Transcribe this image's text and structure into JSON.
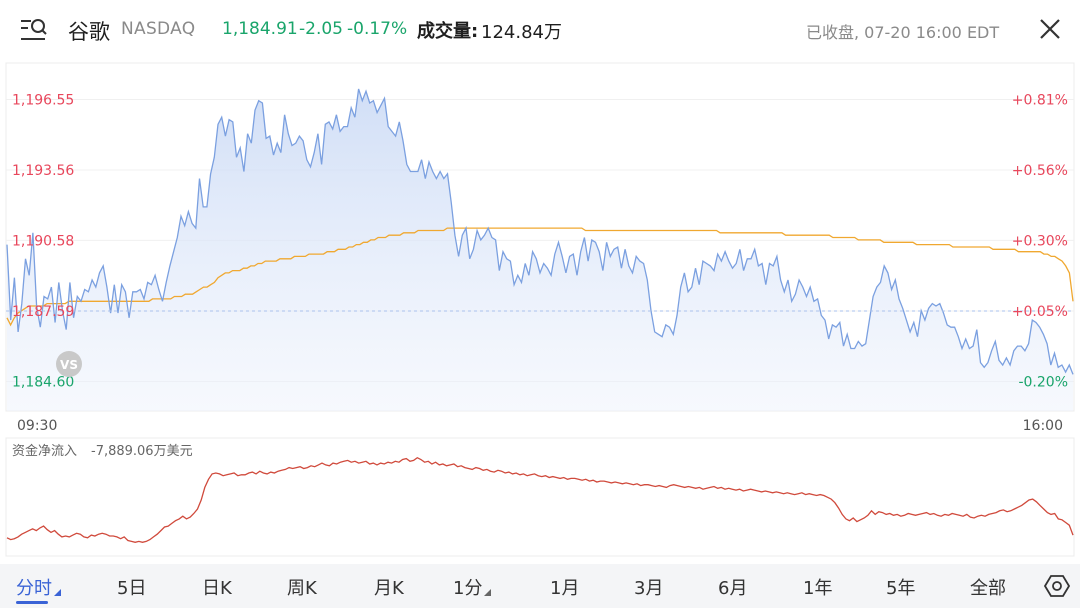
{
  "header": {
    "stock_name": "谷歌",
    "exchange": "NASDAQ",
    "price": "1,184.91",
    "change": "-2.05",
    "change_pct": "-0.17%",
    "volume_label": "成交量:",
    "volume_value": "124.84万",
    "status": "已收盘, 07-20 16:00 EDT",
    "menu_icon": "menu-search-icon",
    "close_icon": "close-icon"
  },
  "colors": {
    "up": "#e8475c",
    "down": "#1aa56b",
    "price_line": "#7ba0e0",
    "avg_line": "#f0a830",
    "flow_line": "#d04a3c",
    "accent": "#3a63d6"
  },
  "chart_data": [
    {
      "type": "area",
      "y_ticks_left": [
        "1,196.55",
        "1,193.56",
        "1,190.58",
        "1,187.59",
        "1,184.60"
      ],
      "y_ticks_right": [
        "+0.81%",
        "+0.56%",
        "+0.30%",
        "+0.05%",
        "-0.20%"
      ],
      "x_ticks": [
        "09:30",
        "16:00"
      ],
      "ylim": [
        1184.6,
        1197.8
      ],
      "reference_line": 1187.59,
      "overlay_label": "VS",
      "series": [
        {
          "values": [
            1190.4,
            1187.2,
            1189.0,
            1186.7,
            1187.9,
            1189.8,
            1189.1,
            1190.9,
            1187.8,
            1186.9,
            1188.2,
            1188.1,
            1188.6,
            1187.1,
            1188.8,
            1187.6,
            1186.8,
            1188.8,
            1187.3,
            1188.2,
            1188.0,
            1188.5,
            1188.4,
            1188.9,
            1188.6,
            1189.2,
            1189.5,
            1188.6,
            1187.5,
            1188.7,
            1187.5,
            1188.7,
            1188.4,
            1187.3,
            1188.4,
            1188.4,
            1188.5,
            1188.1,
            1188.8,
            1188.7,
            1189.1,
            1188.5,
            1188.0,
            1188.8,
            1189.5,
            1190.1,
            1190.7,
            1191.6,
            1191.2,
            1191.8,
            1191.3,
            1191.1,
            1193.2,
            1192.0,
            1192.0,
            1193.4,
            1194.1,
            1195.5,
            1195.8,
            1195.0,
            1195.7,
            1195.6,
            1194.1,
            1194.5,
            1193.5,
            1195.1,
            1194.7,
            1196.1,
            1196.5,
            1196.4,
            1194.9,
            1195.0,
            1194.2,
            1194.7,
            1194.3,
            1195.9,
            1195.1,
            1194.6,
            1194.7,
            1195.0,
            1194.8,
            1194.0,
            1193.7,
            1194.3,
            1195.1,
            1193.8,
            1195.5,
            1195.6,
            1195.3,
            1195.9,
            1195.2,
            1195.4,
            1195.4,
            1196.2,
            1195.8,
            1197.0,
            1196.5,
            1196.9,
            1196.4,
            1196.5,
            1196.0,
            1196.3,
            1196.6,
            1195.4,
            1195.2,
            1195.0,
            1195.6,
            1194.8,
            1193.8,
            1193.5,
            1193.5,
            1193.5,
            1194.0,
            1193.2,
            1193.9,
            1193.5,
            1193.2,
            1193.5,
            1193.2,
            1193.4,
            1192.2,
            1190.8,
            1189.9,
            1190.8,
            1191.1,
            1189.8,
            1190.2,
            1191.0,
            1190.6,
            1190.8,
            1191.1,
            1190.7,
            1190.6,
            1189.3,
            1190.1,
            1189.8,
            1189.7,
            1188.7,
            1189.1,
            1188.8,
            1189.6,
            1189.1,
            1190.1,
            1189.8,
            1189.2,
            1189.6,
            1189.4,
            1189.1,
            1190.0,
            1190.5,
            1189.9,
            1189.2,
            1189.9,
            1190.0,
            1189.1,
            1190.1,
            1190.7,
            1189.7,
            1190.6,
            1190.5,
            1190.1,
            1189.3,
            1190.5,
            1189.9,
            1190.2,
            1190.3,
            1189.4,
            1190.2,
            1189.5,
            1189.2,
            1189.9,
            1189.7,
            1189.6,
            1188.9,
            1187.6,
            1186.7,
            1186.6,
            1186.5,
            1187.0,
            1186.9,
            1186.6,
            1187.4,
            1188.6,
            1189.2,
            1188.4,
            1188.6,
            1189.4,
            1188.7,
            1189.7,
            1189.6,
            1189.5,
            1189.3,
            1190.0,
            1189.7,
            1190.1,
            1189.7,
            1189.4,
            1189.6,
            1190.2,
            1189.3,
            1189.8,
            1189.8,
            1190.2,
            1189.5,
            1189.6,
            1188.7,
            1189.6,
            1189.5,
            1189.9,
            1188.9,
            1188.4,
            1188.9,
            1188.0,
            1188.3,
            1188.9,
            1188.6,
            1188.2,
            1188.6,
            1188.0,
            1188.1,
            1187.4,
            1187.2,
            1186.4,
            1187.0,
            1186.9,
            1187.1,
            1186.1,
            1186.6,
            1186.0,
            1186.0,
            1186.3,
            1186.1,
            1186.2,
            1187.2,
            1188.2,
            1188.6,
            1188.8,
            1189.5,
            1189.2,
            1188.5,
            1188.9,
            1188.1,
            1187.7,
            1187.2,
            1186.7,
            1187.1,
            1186.5,
            1187.6,
            1187.2,
            1187.7,
            1187.9,
            1187.8,
            1187.9,
            1187.5,
            1187.0,
            1186.9,
            1186.9,
            1186.5,
            1186.0,
            1186.4,
            1186.0,
            1186.1,
            1186.8,
            1185.4,
            1185.2,
            1185.4,
            1185.9,
            1186.3,
            1185.5,
            1185.3,
            1185.6,
            1185.3,
            1185.9,
            1186.1,
            1186.1,
            1185.9,
            1186.2,
            1187.2,
            1187.1,
            1186.9,
            1186.6,
            1186.2,
            1185.3,
            1185.8,
            1185.2,
            1185.3,
            1185.0,
            1185.3,
            1184.9
          ]
        },
        {
          "values": [
            1187.3,
            1187.0,
            1187.3,
            1187.5,
            1187.6,
            1187.7,
            1187.8,
            1187.8,
            1187.8,
            1187.8,
            1187.8,
            1187.9,
            1187.9,
            1187.9,
            1187.9,
            1187.9,
            1187.9,
            1188.0,
            1188.0,
            1188.0,
            1188.0,
            1188.0,
            1188.0,
            1188.0,
            1188.0,
            1188.0,
            1188.0,
            1188.0,
            1188.0,
            1188.0,
            1188.0,
            1188.0,
            1188.0,
            1188.0,
            1188.0,
            1188.0,
            1188.0,
            1188.0,
            1188.0,
            1188.0,
            1188.1,
            1188.1,
            1188.1,
            1188.1,
            1188.1,
            1188.1,
            1188.2,
            1188.2,
            1188.2,
            1188.3,
            1188.3,
            1188.3,
            1188.4,
            1188.5,
            1188.6,
            1188.6,
            1188.7,
            1188.8,
            1189.0,
            1189.1,
            1189.2,
            1189.2,
            1189.3,
            1189.3,
            1189.3,
            1189.4,
            1189.4,
            1189.5,
            1189.5,
            1189.6,
            1189.6,
            1189.7,
            1189.7,
            1189.7,
            1189.7,
            1189.8,
            1189.8,
            1189.8,
            1189.8,
            1189.9,
            1189.9,
            1189.9,
            1189.9,
            1190.0,
            1190.0,
            1190.0,
            1190.0,
            1190.0,
            1190.1,
            1190.1,
            1190.1,
            1190.2,
            1190.2,
            1190.2,
            1190.3,
            1190.3,
            1190.4,
            1190.4,
            1190.5,
            1190.5,
            1190.6,
            1190.6,
            1190.7,
            1190.7,
            1190.7,
            1190.8,
            1190.8,
            1190.8,
            1190.8,
            1190.9,
            1190.9,
            1190.9,
            1190.9,
            1191.0,
            1191.0,
            1191.0,
            1191.0,
            1191.0,
            1191.0,
            1191.0,
            1191.0,
            1191.1,
            1191.1,
            1191.1,
            1191.1,
            1191.1,
            1191.1,
            1191.1,
            1191.1,
            1191.1,
            1191.1,
            1191.1,
            1191.1,
            1191.1,
            1191.1,
            1191.1,
            1191.1,
            1191.1,
            1191.1,
            1191.1,
            1191.1,
            1191.1,
            1191.1,
            1191.1,
            1191.1,
            1191.1,
            1191.1,
            1191.1,
            1191.1,
            1191.1,
            1191.1,
            1191.1,
            1191.1,
            1191.1,
            1191.1,
            1191.1,
            1191.1,
            1191.1,
            1191.1,
            1191.0,
            1191.0,
            1191.0,
            1191.0,
            1191.0,
            1191.0,
            1191.0,
            1191.0,
            1191.0,
            1191.0,
            1191.0,
            1191.0,
            1191.0,
            1191.0,
            1191.0,
            1191.0,
            1191.0,
            1191.0,
            1191.0,
            1191.0,
            1191.0,
            1191.0,
            1191.0,
            1191.0,
            1191.0,
            1191.0,
            1191.0,
            1191.0,
            1191.0,
            1191.0,
            1191.0,
            1191.0,
            1191.0,
            1191.0,
            1191.0,
            1191.0,
            1191.0,
            1190.9,
            1190.9,
            1190.9,
            1190.9,
            1190.9,
            1190.9,
            1190.9,
            1190.9,
            1190.9,
            1190.9,
            1190.9,
            1190.9,
            1190.9,
            1190.9,
            1190.9,
            1190.9,
            1190.9,
            1190.9,
            1190.8,
            1190.8,
            1190.8,
            1190.8,
            1190.8,
            1190.8,
            1190.8,
            1190.8,
            1190.8,
            1190.8,
            1190.8,
            1190.8,
            1190.8,
            1190.7,
            1190.7,
            1190.7,
            1190.7,
            1190.7,
            1190.7,
            1190.7,
            1190.6,
            1190.6,
            1190.6,
            1190.6,
            1190.6,
            1190.6,
            1190.6,
            1190.5,
            1190.5,
            1190.5,
            1190.5,
            1190.5,
            1190.5,
            1190.5,
            1190.5,
            1190.5,
            1190.4,
            1190.4,
            1190.4,
            1190.4,
            1190.4,
            1190.4,
            1190.4,
            1190.4,
            1190.4,
            1190.4,
            1190.3,
            1190.3,
            1190.3,
            1190.3,
            1190.3,
            1190.3,
            1190.3,
            1190.3,
            1190.3,
            1190.3,
            1190.3,
            1190.2,
            1190.2,
            1190.2,
            1190.2,
            1190.2,
            1190.2,
            1190.2,
            1190.1,
            1190.1,
            1190.1,
            1190.1,
            1190.1,
            1190.1,
            1190.1,
            1190.0,
            1190.0,
            1189.9,
            1189.9,
            1189.8,
            1189.7,
            1189.5,
            1189.2,
            1188.0
          ]
        }
      ]
    },
    {
      "type": "line",
      "title": "资金净流入",
      "value": "-7,889.06万美元",
      "series": [
        {
          "values": [
            0.08,
            0.06,
            0.07,
            0.09,
            0.12,
            0.14,
            0.16,
            0.18,
            0.16,
            0.19,
            0.21,
            0.17,
            0.14,
            0.16,
            0.12,
            0.09,
            0.1,
            0.09,
            0.11,
            0.13,
            0.12,
            0.09,
            0.08,
            0.11,
            0.1,
            0.12,
            0.13,
            0.12,
            0.1,
            0.1,
            0.09,
            0.07,
            0.09,
            0.05,
            0.04,
            0.03,
            0.04,
            0.03,
            0.04,
            0.06,
            0.09,
            0.12,
            0.16,
            0.2,
            0.21,
            0.24,
            0.27,
            0.29,
            0.32,
            0.29,
            0.31,
            0.35,
            0.4,
            0.5,
            0.64,
            0.73,
            0.79,
            0.8,
            0.79,
            0.77,
            0.78,
            0.79,
            0.8,
            0.77,
            0.78,
            0.78,
            0.8,
            0.81,
            0.79,
            0.82,
            0.8,
            0.79,
            0.81,
            0.8,
            0.82,
            0.83,
            0.84,
            0.86,
            0.85,
            0.86,
            0.87,
            0.85,
            0.86,
            0.88,
            0.87,
            0.89,
            0.91,
            0.89,
            0.88,
            0.91,
            0.9,
            0.92,
            0.93,
            0.94,
            0.92,
            0.93,
            0.91,
            0.92,
            0.93,
            0.9,
            0.91,
            0.89,
            0.91,
            0.9,
            0.92,
            0.91,
            0.93,
            0.92,
            0.95,
            0.96,
            0.93,
            0.94,
            0.97,
            0.95,
            0.92,
            0.93,
            0.9,
            0.92,
            0.89,
            0.9,
            0.88,
            0.89,
            0.9,
            0.87,
            0.88,
            0.86,
            0.85,
            0.84,
            0.86,
            0.85,
            0.83,
            0.84,
            0.82,
            0.81,
            0.83,
            0.82,
            0.8,
            0.81,
            0.79,
            0.8,
            0.78,
            0.79,
            0.77,
            0.78,
            0.79,
            0.77,
            0.76,
            0.77,
            0.75,
            0.76,
            0.75,
            0.74,
            0.75,
            0.73,
            0.74,
            0.74,
            0.73,
            0.72,
            0.73,
            0.71,
            0.72,
            0.7,
            0.71,
            0.71,
            0.7,
            0.69,
            0.7,
            0.69,
            0.68,
            0.69,
            0.68,
            0.67,
            0.68,
            0.66,
            0.67,
            0.67,
            0.66,
            0.65,
            0.66,
            0.65,
            0.64,
            0.66,
            0.67,
            0.66,
            0.65,
            0.64,
            0.65,
            0.64,
            0.63,
            0.64,
            0.62,
            0.63,
            0.64,
            0.65,
            0.63,
            0.64,
            0.62,
            0.63,
            0.62,
            0.61,
            0.62,
            0.6,
            0.61,
            0.62,
            0.61,
            0.6,
            0.59,
            0.6,
            0.59,
            0.58,
            0.59,
            0.58,
            0.57,
            0.58,
            0.57,
            0.56,
            0.57,
            0.58,
            0.56,
            0.57,
            0.56,
            0.55,
            0.56,
            0.55,
            0.53,
            0.51,
            0.47,
            0.41,
            0.34,
            0.29,
            0.27,
            0.3,
            0.26,
            0.28,
            0.3,
            0.33,
            0.38,
            0.34,
            0.37,
            0.36,
            0.34,
            0.35,
            0.33,
            0.34,
            0.32,
            0.33,
            0.35,
            0.34,
            0.33,
            0.34,
            0.35,
            0.36,
            0.34,
            0.35,
            0.33,
            0.32,
            0.34,
            0.33,
            0.35,
            0.34,
            0.33,
            0.32,
            0.34,
            0.31,
            0.3,
            0.32,
            0.33,
            0.32,
            0.34,
            0.35,
            0.36,
            0.38,
            0.39,
            0.37,
            0.38,
            0.4,
            0.42,
            0.44,
            0.47,
            0.5,
            0.51,
            0.48,
            0.44,
            0.4,
            0.36,
            0.34,
            0.35,
            0.29,
            0.28,
            0.25,
            0.22,
            0.11
          ]
        }
      ]
    }
  ],
  "tabs": [
    {
      "label": "分时",
      "active": true,
      "dropdown": true
    },
    {
      "label": "5日"
    },
    {
      "label": "日K"
    },
    {
      "label": "周K"
    },
    {
      "label": "月K"
    },
    {
      "label": "1分",
      "dropdown": true
    },
    {
      "label": "1月"
    },
    {
      "label": "3月"
    },
    {
      "label": "6月"
    },
    {
      "label": "1年"
    },
    {
      "label": "5年"
    },
    {
      "label": "全部"
    }
  ],
  "settings_icon": "settings-hex-icon"
}
